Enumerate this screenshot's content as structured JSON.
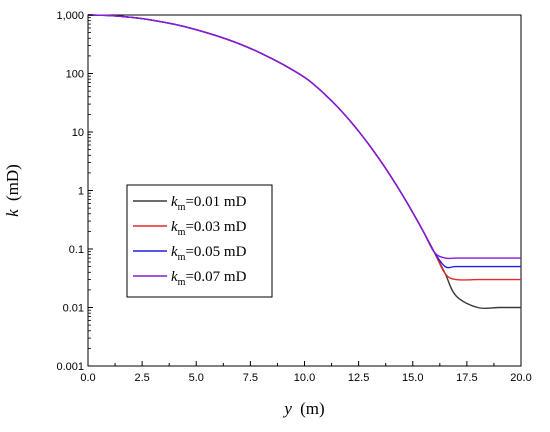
{
  "chart_data": {
    "type": "line",
    "xlabel_var": "y",
    "xlabel_unit": "(m)",
    "ylabel_var": "k",
    "ylabel_unit": "(mD)",
    "xlim": [
      0,
      20
    ],
    "ylim": [
      0.001,
      1000
    ],
    "y_scale": "log",
    "grid": false,
    "legend_position": "center-left",
    "x_ticks": [
      0,
      2.5,
      5,
      7.5,
      10,
      12.5,
      15,
      17.5,
      20
    ],
    "x_tick_labels": [
      "0.0",
      "2.5",
      "5.0",
      "7.5",
      "10.0",
      "12.5",
      "15.0",
      "17.5",
      "20.0"
    ],
    "y_ticks": [
      0.001,
      0.01,
      0.1,
      1,
      10,
      100,
      1000
    ],
    "y_tick_labels": [
      "0.001",
      "0.01",
      "0.1",
      "1",
      "10",
      "100",
      "1,000"
    ],
    "legend_var": "k",
    "legend_sub": "m",
    "series": [
      {
        "name": "=0.01 mD",
        "color": "#3a3a3a",
        "x": [
          0,
          1,
          2,
          3,
          4,
          5,
          6,
          7,
          8,
          9,
          10,
          10.5,
          11,
          11.5,
          12,
          12.5,
          13,
          13.5,
          14,
          14.5,
          15,
          15.5,
          16,
          16.5,
          17,
          18,
          19,
          20
        ],
        "y": [
          1000,
          977,
          912,
          813,
          692,
          562,
          434,
          320,
          221,
          143,
          86,
          61.7,
          41.9,
          27.5,
          17.2,
          10.3,
          5.93,
          3.26,
          1.72,
          0.869,
          0.421,
          0.196,
          0.0876,
          0.0378,
          0.0158,
          0.01,
          0.01,
          0.01
        ]
      },
      {
        "name": "=0.03 mD",
        "color": "#e8282a",
        "x": [
          0,
          1,
          2,
          3,
          4,
          5,
          6,
          7,
          8,
          9,
          10,
          10.5,
          11,
          11.5,
          12,
          12.5,
          13,
          13.5,
          14,
          14.5,
          15,
          15.5,
          16,
          16.5,
          17,
          18,
          19,
          20
        ],
        "y": [
          1000,
          977,
          912,
          813,
          692,
          562,
          434,
          320,
          221,
          143,
          86,
          61.7,
          41.9,
          27.5,
          17.2,
          10.3,
          5.93,
          3.26,
          1.72,
          0.869,
          0.421,
          0.196,
          0.0876,
          0.0378,
          0.03,
          0.03,
          0.03,
          0.03
        ]
      },
      {
        "name": "=0.05 mD",
        "color": "#1f1fe0",
        "x": [
          0,
          1,
          2,
          3,
          4,
          5,
          6,
          7,
          8,
          9,
          10,
          10.5,
          11,
          11.5,
          12,
          12.5,
          13,
          13.5,
          14,
          14.5,
          15,
          15.5,
          16,
          16.5,
          17,
          18,
          19,
          20
        ],
        "y": [
          1000,
          977,
          912,
          813,
          692,
          562,
          434,
          320,
          221,
          143,
          86,
          61.7,
          41.9,
          27.5,
          17.2,
          10.3,
          5.93,
          3.26,
          1.72,
          0.869,
          0.421,
          0.196,
          0.0876,
          0.05,
          0.05,
          0.05,
          0.05,
          0.05
        ]
      },
      {
        "name": "=0.07 mD",
        "color": "#8a1ad6",
        "x": [
          0,
          1,
          2,
          3,
          4,
          5,
          6,
          7,
          8,
          9,
          10,
          10.5,
          11,
          11.5,
          12,
          12.5,
          13,
          13.5,
          14,
          14.5,
          15,
          15.5,
          16,
          16.5,
          17,
          18,
          19,
          20
        ],
        "y": [
          1000,
          977,
          912,
          813,
          692,
          562,
          434,
          320,
          221,
          143,
          86,
          61.7,
          41.9,
          27.5,
          17.2,
          10.3,
          5.93,
          3.26,
          1.72,
          0.869,
          0.421,
          0.196,
          0.0876,
          0.07,
          0.07,
          0.07,
          0.07,
          0.07
        ]
      }
    ]
  }
}
